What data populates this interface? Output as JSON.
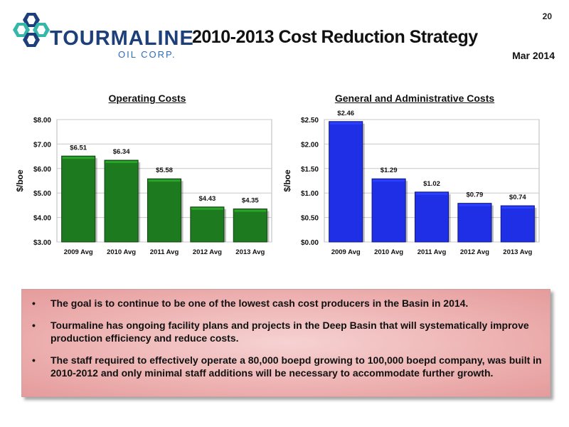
{
  "brand": {
    "name": "TOURMALINE",
    "sub": "OIL CORP."
  },
  "header": {
    "page_number": "20",
    "title": "2010-2013 Cost Reduction Strategy",
    "date": "Mar 2014"
  },
  "colors": {
    "operating_bar": "#1e7a1e",
    "ga_bar": "#1f2fe6",
    "callout_bg": "#eeb3b3"
  },
  "chart_data": [
    {
      "type": "bar",
      "title": "Operating Costs",
      "ylabel": "$/boe",
      "xlabel": "",
      "categories": [
        "2009 Avg",
        "2010 Avg",
        "2011 Avg",
        "2012 Avg",
        "2013 Avg"
      ],
      "values": [
        6.51,
        6.34,
        5.58,
        4.43,
        4.35
      ],
      "value_labels": [
        "$6.51",
        "$6.34",
        "$5.58",
        "$4.43",
        "$4.35"
      ],
      "ylim": [
        3,
        8
      ],
      "yticks": [
        3,
        4,
        5,
        6,
        7,
        8
      ],
      "ytick_labels": [
        "$3.00",
        "$4.00",
        "$5.00",
        "$6.00",
        "$7.00",
        "$8.00"
      ],
      "grid": true,
      "color": "#1e7a1e"
    },
    {
      "type": "bar",
      "title": "General and Administrative Costs",
      "ylabel": "$/boe",
      "xlabel": "",
      "categories": [
        "2009 Avg",
        "2010 Avg",
        "2011 Avg",
        "2012 Avg",
        "2013 Avg"
      ],
      "values": [
        2.46,
        1.29,
        1.02,
        0.79,
        0.74
      ],
      "value_labels": [
        "$2.46",
        "$1.29",
        "$1.02",
        "$0.79",
        "$0.74"
      ],
      "ylim": [
        0,
        2.5
      ],
      "yticks": [
        0,
        0.5,
        1,
        1.5,
        2,
        2.5
      ],
      "ytick_labels": [
        "$0.00",
        "$0.50",
        "$1.00",
        "$1.50",
        "$2.00",
        "$2.50"
      ],
      "grid": true,
      "color": "#1f2fe6"
    }
  ],
  "bullets": [
    "The goal is to continue to be one of the lowest cash cost producers in the Basin in 2014.",
    "Tourmaline has ongoing facility plans and projects in the Deep Basin that will systematically improve production efficiency and reduce costs.",
    "The staff required to effectively operate a 80,000 boepd growing to 100,000 boepd company, was built in 2010-2012 and only minimal staff additions will be necessary to accommodate further growth."
  ],
  "bullet_symbol": "•"
}
